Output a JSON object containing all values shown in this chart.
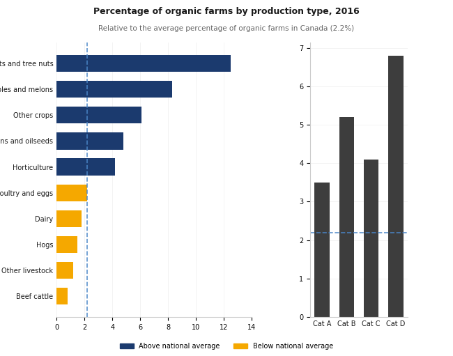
{
  "title": "Percentage of organic farms by production type, 2016",
  "subtitle": "Relative to the average percentage of organic farms in Canada (2.2%)",
  "horiz_categories": [
    "Fruits and tree nuts",
    "Vegetables and melons",
    "Other crops",
    "Grains and oilseeds",
    "Horticulture",
    "Poultry and eggs",
    "Dairy",
    "Hogs",
    "Other livestock",
    "Beef cattle"
  ],
  "horiz_values": [
    12.5,
    8.3,
    6.1,
    4.8,
    4.2,
    2.2,
    1.8,
    1.5,
    1.2,
    0.8
  ],
  "vert_categories": [
    "Cat A",
    "Cat B",
    "Cat C",
    "Cat D"
  ],
  "vert_values": [
    3.5,
    5.2,
    4.1,
    6.8
  ],
  "average": 2.2,
  "color_navy": "#1b3a6e",
  "color_gold": "#f5a800",
  "color_gray": "#555555",
  "color_darkgray": "#3d3d3d",
  "avg_line_color": "#4a86c8",
  "background_color": "#ffffff",
  "text_color": "#1a1a1a",
  "legend_above": "Above national average",
  "legend_below": "Below national average",
  "figsize": [
    6.5,
    5.11
  ],
  "dpi": 100
}
